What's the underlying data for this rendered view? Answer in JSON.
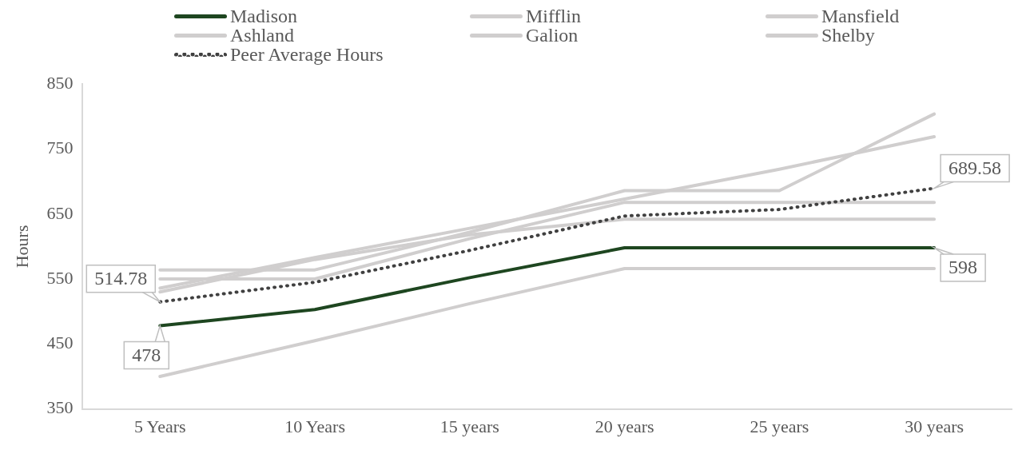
{
  "chart_data": {
    "type": "line",
    "ylabel": "Hours",
    "categories": [
      "5 Years",
      "10 Years",
      "15 years",
      "20 years",
      "25 years",
      "30 years"
    ],
    "ylim": [
      350,
      850
    ],
    "yticks": [
      350,
      450,
      550,
      650,
      750,
      850
    ],
    "grid": false,
    "legend": "top",
    "marker": "none",
    "series": [
      {
        "name": "Madison",
        "color": "#1e4620",
        "values": [
          478,
          503,
          552,
          598,
          598,
          598
        ],
        "value_labels": [
          "478",
          null,
          null,
          null,
          null,
          "598"
        ]
      },
      {
        "name": "Mifflin",
        "color": "#d0cece",
        "values": [
          564,
          564,
          622,
          686,
          686,
          804
        ]
      },
      {
        "name": "Mansfield",
        "color": "#d0cece",
        "values": [
          550,
          550,
          612,
          668,
          668,
          668
        ]
      },
      {
        "name": "Ashland",
        "color": "#d0cece",
        "values": [
          536,
          583,
          628,
          673,
          719,
          769
        ]
      },
      {
        "name": "Galion",
        "color": "#d0cece",
        "values": [
          530,
          580,
          618,
          642,
          642,
          642
        ]
      },
      {
        "name": "Shelby",
        "color": "#d0cece",
        "values": [
          400,
          455,
          512,
          566,
          566,
          566
        ]
      },
      {
        "name": "Peer Average Hours",
        "color": "#404040",
        "line_style": "dotted",
        "values": [
          514.78,
          545,
          594,
          647,
          657,
          689.58
        ],
        "value_labels": [
          "514.78",
          null,
          null,
          null,
          null,
          "689.58"
        ]
      }
    ]
  }
}
